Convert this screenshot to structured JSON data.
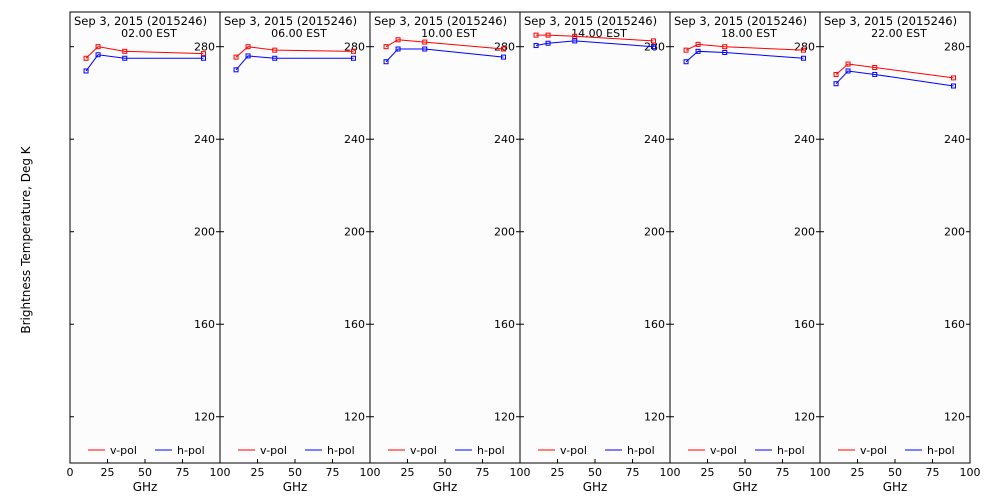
{
  "ylabel": "Brightness Temperature, Deg K",
  "xlabel": "GHz",
  "legend": {
    "v_label": "v-pol",
    "h_label": "h-pol"
  },
  "colors": {
    "v": "#ff0000",
    "h": "#0000ff",
    "frame": "#000000",
    "panel_bg": "#fcfcfc"
  },
  "chart_data": [
    {
      "type": "line",
      "title": "Sep  3, 2015 (2015246)",
      "subtitle": "02.00 EST",
      "xlim": [
        0,
        100
      ],
      "ylim": [
        100,
        295
      ],
      "xticks": [
        0,
        25,
        50,
        75,
        100
      ],
      "xtick_labels": [
        "0",
        "25",
        "50",
        "75",
        "100"
      ],
      "yticks": [
        120,
        160,
        200,
        240,
        280
      ],
      "x": [
        10.7,
        18.7,
        36.5,
        89.0
      ],
      "series": [
        {
          "name": "v-pol",
          "values": [
            275.0,
            280.0,
            278.0,
            277.0
          ]
        },
        {
          "name": "h-pol",
          "values": [
            269.5,
            276.5,
            275.0,
            275.0
          ]
        }
      ]
    },
    {
      "type": "line",
      "title": "Sep  3, 2015 (2015246)",
      "subtitle": "06.00 EST",
      "xlim": [
        0,
        100
      ],
      "ylim": [
        100,
        295
      ],
      "xticks": [
        0,
        25,
        50,
        75,
        100
      ],
      "xtick_labels": [
        "",
        "25",
        "50",
        "75",
        "100"
      ],
      "yticks": [
        120,
        160,
        200,
        240,
        280
      ],
      "x": [
        10.7,
        18.7,
        36.5,
        89.0
      ],
      "series": [
        {
          "name": "v-pol",
          "values": [
            275.5,
            280.0,
            278.5,
            278.0
          ]
        },
        {
          "name": "h-pol",
          "values": [
            270.0,
            276.0,
            275.0,
            275.0
          ]
        }
      ]
    },
    {
      "type": "line",
      "title": "Sep  3, 2015 (2015246)",
      "subtitle": "10.00 EST",
      "xlim": [
        0,
        100
      ],
      "ylim": [
        100,
        295
      ],
      "xticks": [
        0,
        25,
        50,
        75,
        100
      ],
      "xtick_labels": [
        "",
        "25",
        "50",
        "75",
        "100"
      ],
      "yticks": [
        120,
        160,
        200,
        240,
        280
      ],
      "x": [
        10.7,
        18.7,
        36.5,
        89.0
      ],
      "series": [
        {
          "name": "v-pol",
          "values": [
            280.0,
            283.0,
            282.0,
            279.0
          ]
        },
        {
          "name": "h-pol",
          "values": [
            273.5,
            279.0,
            279.0,
            275.5
          ]
        }
      ]
    },
    {
      "type": "line",
      "title": "Sep  3, 2015 (2015246)",
      "subtitle": "14.00 EST",
      "xlim": [
        0,
        100
      ],
      "ylim": [
        100,
        295
      ],
      "xticks": [
        0,
        25,
        50,
        75,
        100
      ],
      "xtick_labels": [
        "",
        "25",
        "50",
        "75",
        "100"
      ],
      "yticks": [
        120,
        160,
        200,
        240,
        280
      ],
      "x": [
        10.7,
        18.7,
        36.5,
        89.0
      ],
      "series": [
        {
          "name": "v-pol",
          "values": [
            285.0,
            285.0,
            284.5,
            282.5
          ]
        },
        {
          "name": "h-pol",
          "values": [
            280.5,
            281.5,
            282.5,
            280.0
          ]
        }
      ]
    },
    {
      "type": "line",
      "title": "Sep  3, 2015 (2015246)",
      "subtitle": "18.00 EST",
      "xlim": [
        0,
        100
      ],
      "ylim": [
        100,
        295
      ],
      "xticks": [
        0,
        25,
        50,
        75,
        100
      ],
      "xtick_labels": [
        "",
        "25",
        "50",
        "75",
        "100"
      ],
      "yticks": [
        120,
        160,
        200,
        240,
        280
      ],
      "x": [
        10.7,
        18.7,
        36.5,
        89.0
      ],
      "series": [
        {
          "name": "v-pol",
          "values": [
            278.5,
            281.0,
            280.0,
            278.5
          ]
        },
        {
          "name": "h-pol",
          "values": [
            273.5,
            278.0,
            277.5,
            275.0
          ]
        }
      ]
    },
    {
      "type": "line",
      "title": "Sep  3, 2015 (2015246)",
      "subtitle": "22.00 EST",
      "xlim": [
        0,
        100
      ],
      "ylim": [
        100,
        295
      ],
      "xticks": [
        0,
        25,
        50,
        75,
        100
      ],
      "xtick_labels": [
        "",
        "25",
        "50",
        "75",
        "100"
      ],
      "yticks": [
        120,
        160,
        200,
        240,
        280
      ],
      "x": [
        10.7,
        18.7,
        36.5,
        89.0
      ],
      "series": [
        {
          "name": "v-pol",
          "values": [
            268.0,
            272.5,
            271.0,
            266.5
          ]
        },
        {
          "name": "h-pol",
          "values": [
            264.0,
            269.5,
            268.0,
            263.0
          ]
        }
      ]
    }
  ]
}
